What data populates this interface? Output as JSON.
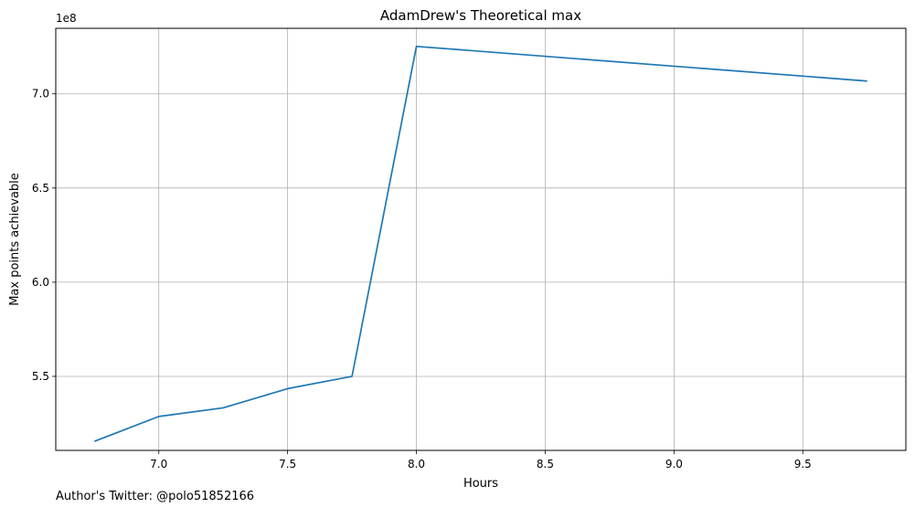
{
  "chart_data": {
    "type": "line",
    "title": "AdamDrew's Theoretical max",
    "xlabel": "Hours",
    "ylabel": "Max points achievable",
    "y_offset_label": "1e8",
    "grid": true,
    "x": [
      6.75,
      7.0,
      7.25,
      7.5,
      7.75,
      8.0,
      9.75
    ],
    "series": [
      {
        "color": "#1f77b4",
        "values": [
          515500000,
          528700000,
          533300000,
          543500000,
          550000000,
          725200000,
          706800000
        ]
      }
    ],
    "xlim": [
      6.6,
      9.9
    ],
    "ylim": [
      510700000,
      734800000
    ],
    "x_ticks": [
      7.0,
      7.5,
      8.0,
      8.5,
      9.0,
      9.5
    ],
    "x_tick_labels": [
      "7.0",
      "7.5",
      "8.0",
      "8.5",
      "9.0",
      "9.5"
    ],
    "y_ticks": [
      550000000,
      600000000,
      650000000,
      700000000
    ],
    "y_tick_labels": [
      "5.5",
      "6.0",
      "6.5",
      "7.0"
    ]
  },
  "footnote": "Author's Twitter: @polo51852166"
}
